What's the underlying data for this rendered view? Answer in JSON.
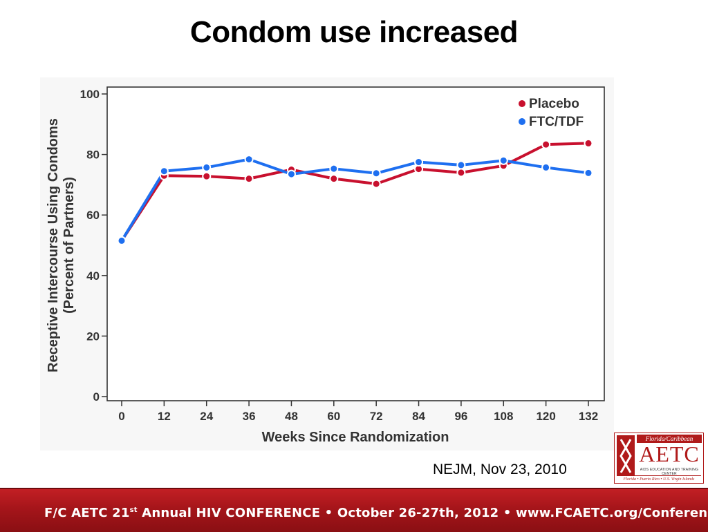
{
  "slide": {
    "title": "Condom use increased",
    "citation": "NEJM, Nov 23, 2010"
  },
  "logo": {
    "region": "Florida/Caribbean",
    "name": "AETC",
    "subtitle": "AIDS EDUCATION AND TRAINING CENTER",
    "places": "Florida • Puerto Rico • U.S. Virgin Islands",
    "color": "#b01a1a"
  },
  "footer": {
    "part1": "F/C AETC 21",
    "sup": "st",
    "part2": " Annual HIV CONFERENCE  •  October 26-27th, 2012  •  www.FCAETC.org/Conference",
    "background": "#a5151a"
  },
  "chart_data": {
    "type": "line",
    "title": "",
    "xlabel": "Weeks Since Randomization",
    "ylabel": "Receptive Intercourse Using Condoms",
    "ylabel2": "(Percent of Partners)",
    "x": [
      0,
      12,
      24,
      36,
      48,
      60,
      72,
      84,
      96,
      108,
      120,
      132
    ],
    "xlim": [
      0,
      132
    ],
    "ylim": [
      0,
      100
    ],
    "yticks": [
      0,
      20,
      40,
      60,
      80,
      100
    ],
    "grid": false,
    "legend_position": "top-right",
    "series": [
      {
        "name": "Placebo",
        "color": "#c8102e",
        "values": [
          51.5,
          73,
          72.8,
          72,
          75,
          72,
          70.3,
          75.2,
          74,
          76.3,
          83.3,
          83.7
        ]
      },
      {
        "name": "FTC/TDF",
        "color": "#1e6ff0",
        "values": [
          51.5,
          74.5,
          75.7,
          78.4,
          73.5,
          75.3,
          73.8,
          77.5,
          76.5,
          78,
          75.7,
          73.9
        ]
      }
    ]
  }
}
